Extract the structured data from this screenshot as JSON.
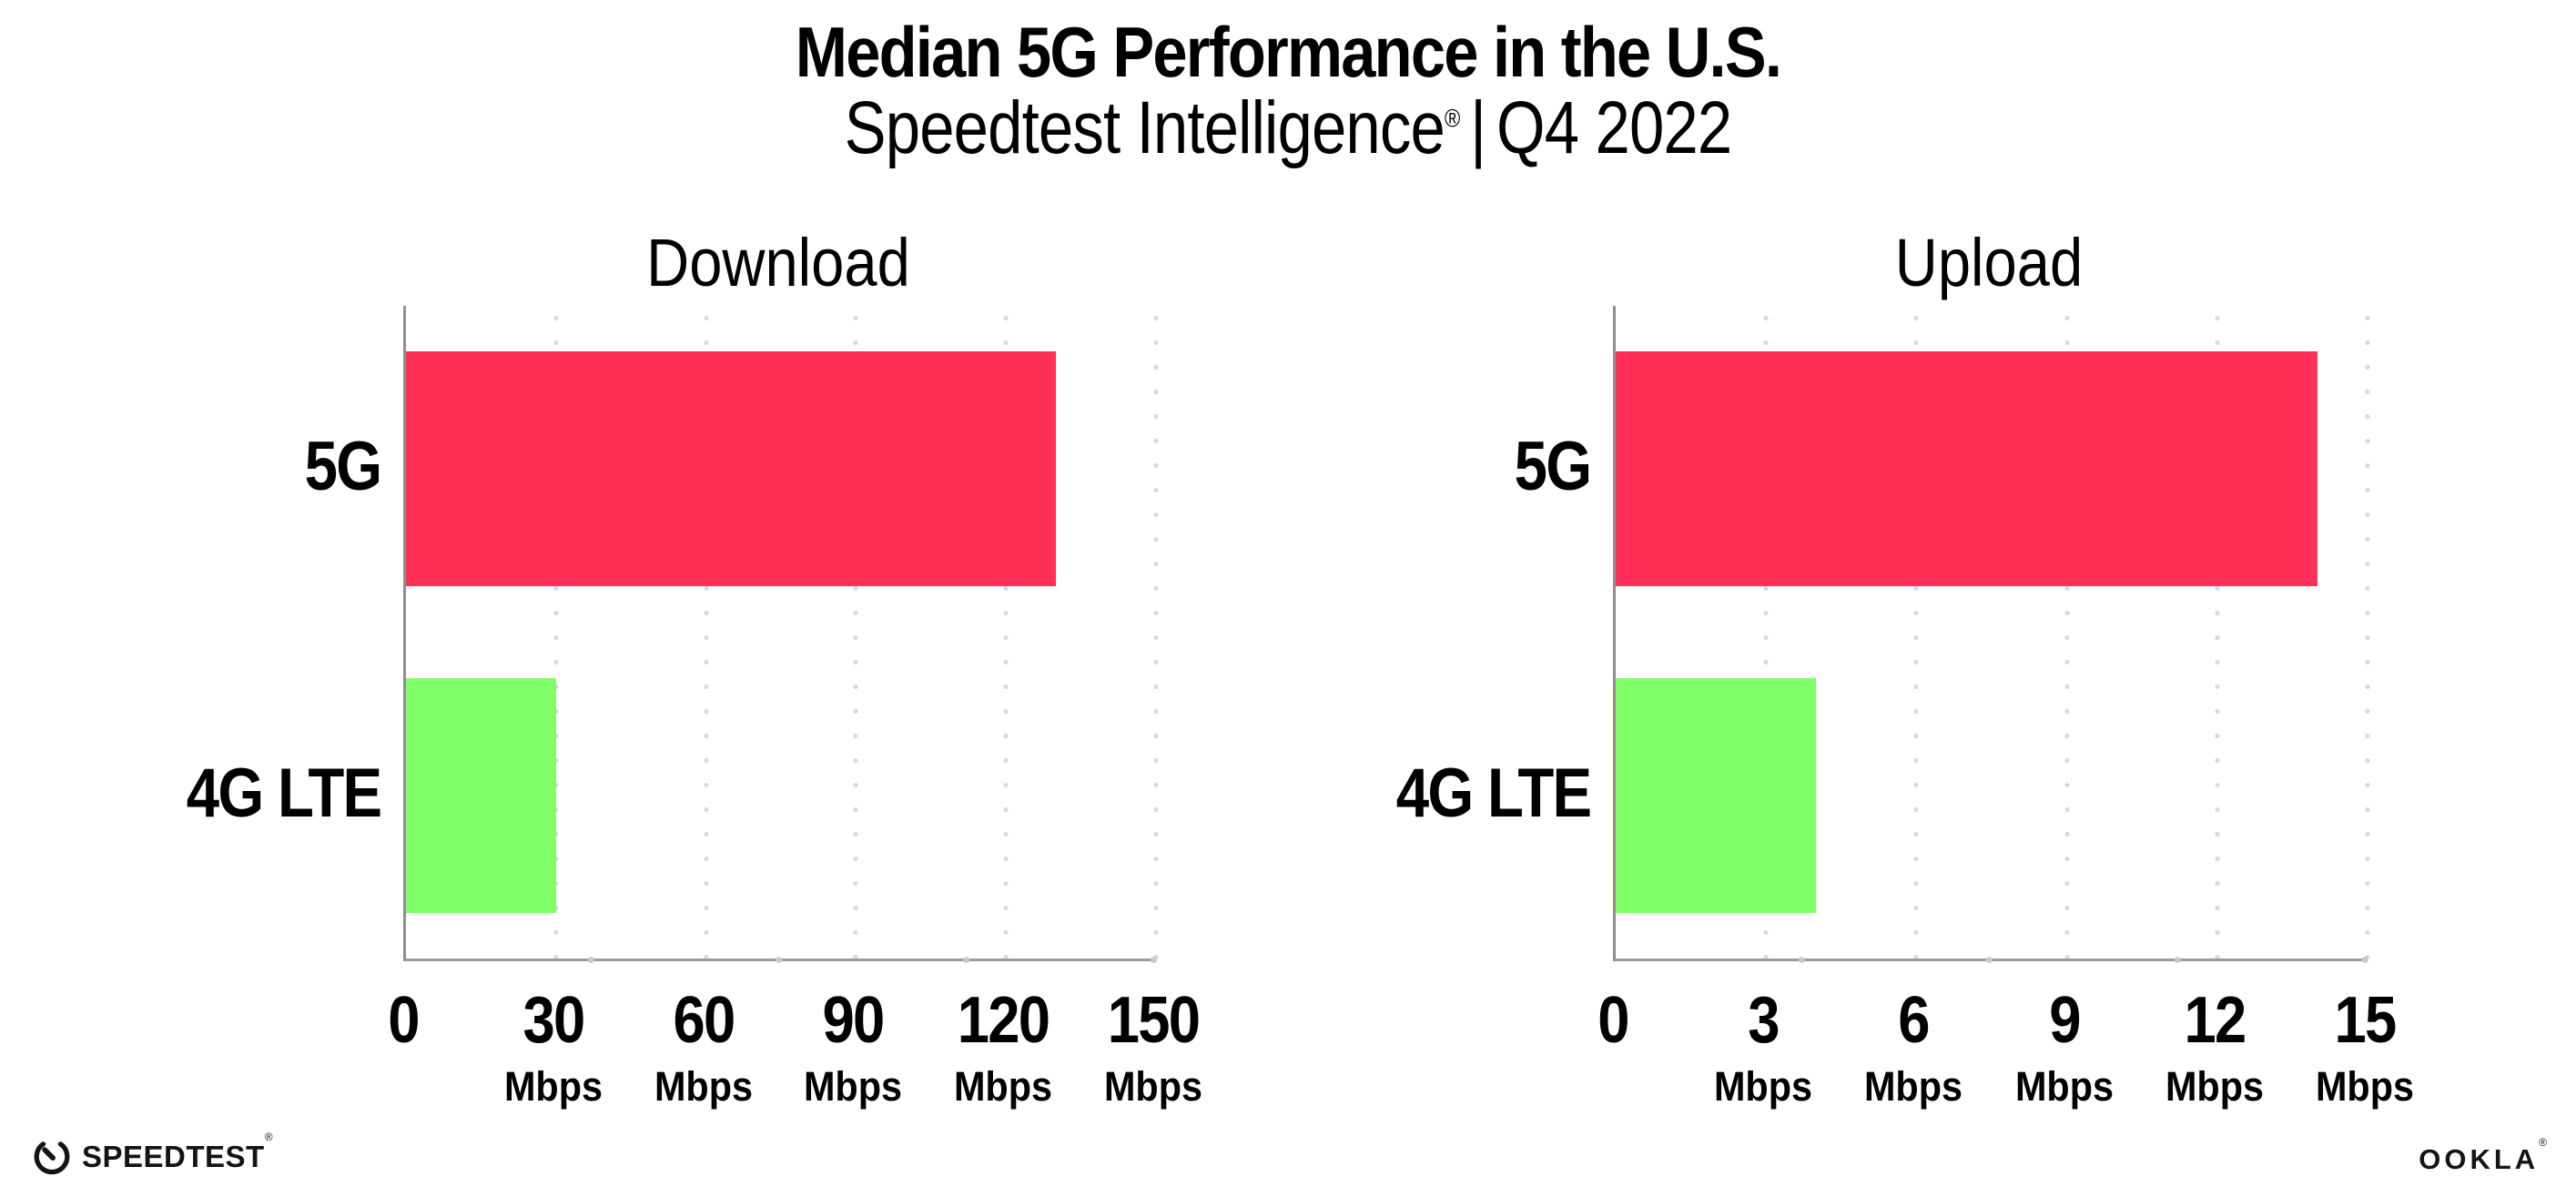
{
  "header": {
    "title": "Median 5G Performance in the U.S.",
    "subtitle_brand": "Speedtest Intelligence",
    "subtitle_reg": "®",
    "subtitle_sep": "|",
    "subtitle_period": "Q4 2022"
  },
  "colors": {
    "bar_5g": "#ff2f58",
    "bar_4g_lte": "#80ff66",
    "axis": "#8f8f8f",
    "grid_dot": "#d8d8e2",
    "text": "#000000"
  },
  "chart_data": [
    {
      "type": "bar",
      "orientation": "horizontal",
      "title": "Download",
      "categories": [
        "5G",
        "4G LTE"
      ],
      "values": [
        130,
        30
      ],
      "unit": "Mbps",
      "xlim": [
        0,
        150
      ],
      "xticks": [
        0,
        30,
        60,
        90,
        120,
        150
      ],
      "grid": "dotted-vertical",
      "legend": "none",
      "bar_colors": [
        "#ff2f58",
        "#80ff66"
      ]
    },
    {
      "type": "bar",
      "orientation": "horizontal",
      "title": "Upload",
      "categories": [
        "5G",
        "4G LTE"
      ],
      "values": [
        14,
        4
      ],
      "unit": "Mbps",
      "xlim": [
        0,
        15
      ],
      "xticks": [
        0,
        3,
        6,
        9,
        12,
        15
      ],
      "grid": "dotted-vertical",
      "legend": "none",
      "bar_colors": [
        "#ff2f58",
        "#80ff66"
      ]
    }
  ],
  "footer": {
    "speedtest_label": "SPEEDTEST",
    "speedtest_reg": "®",
    "ookla_label": "OOKLA",
    "ookla_reg": "®"
  }
}
